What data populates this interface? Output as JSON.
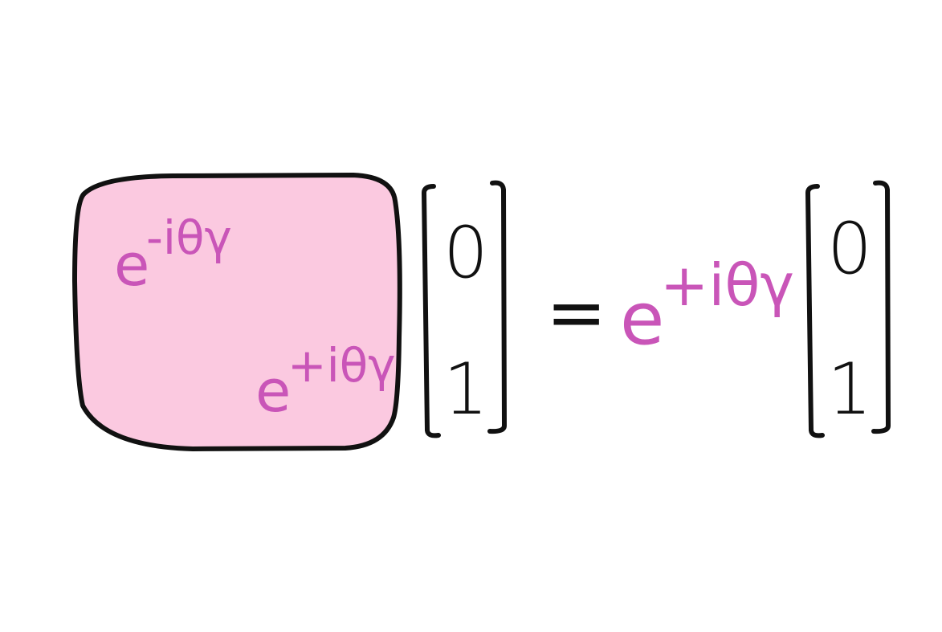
{
  "colors": {
    "matrix_fill": "#fbc9e0",
    "ink": "#111111",
    "phase": "#c955b8",
    "background": "#ffffff"
  },
  "matrix": {
    "top_left": {
      "base": "e",
      "exponent": "-iθγ"
    },
    "bottom_right": {
      "base": "e",
      "exponent": "+iθγ"
    }
  },
  "left_vector": {
    "entries": [
      "0",
      "1"
    ]
  },
  "equals": "=",
  "eigenvalue": {
    "base": "e",
    "exponent": "+iθγ"
  },
  "right_vector": {
    "entries": [
      "0",
      "1"
    ]
  }
}
